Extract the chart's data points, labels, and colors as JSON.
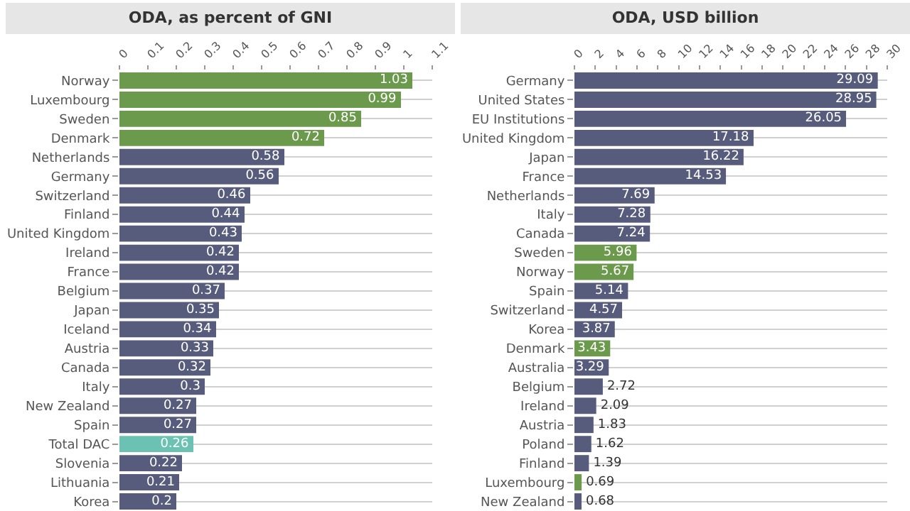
{
  "chart_data": [
    {
      "type": "bar",
      "orientation": "horizontal",
      "title": "ODA, as percent of GNI",
      "categories": [
        "Norway",
        "Luxembourg",
        "Sweden",
        "Denmark",
        "Netherlands",
        "Germany",
        "Switzerland",
        "Finland",
        "United Kingdom",
        "Ireland",
        "France",
        "Belgium",
        "Japan",
        "Iceland",
        "Austria",
        "Canada",
        "Italy",
        "New Zealand",
        "Spain",
        "Total DAC",
        "Slovenia",
        "Lithuania",
        "Korea"
      ],
      "values": [
        1.03,
        0.99,
        0.85,
        0.72,
        0.58,
        0.56,
        0.46,
        0.44,
        0.43,
        0.42,
        0.42,
        0.37,
        0.35,
        0.34,
        0.33,
        0.32,
        0.3,
        0.27,
        0.27,
        0.26,
        0.22,
        0.21,
        0.2
      ],
      "colors": [
        "#6b9a4c",
        "#6b9a4c",
        "#6b9a4c",
        "#6b9a4c",
        "#575c7c",
        "#575c7c",
        "#575c7c",
        "#575c7c",
        "#575c7c",
        "#575c7c",
        "#575c7c",
        "#575c7c",
        "#575c7c",
        "#575c7c",
        "#575c7c",
        "#575c7c",
        "#575c7c",
        "#575c7c",
        "#575c7c",
        "#6cc2b2",
        "#575c7c",
        "#575c7c",
        "#575c7c"
      ],
      "xlim": [
        0,
        1.1
      ],
      "xticks": [
        0,
        0.1,
        0.2,
        0.3,
        0.4,
        0.5,
        0.6,
        0.7,
        0.8,
        0.9,
        1,
        1.1
      ],
      "grid": "y",
      "data_labels": true
    },
    {
      "type": "bar",
      "orientation": "horizontal",
      "title": "ODA, USD billion",
      "categories": [
        "Germany",
        "United States",
        "EU Institutions",
        "United Kingdom",
        "Japan",
        "France",
        "Netherlands",
        "Italy",
        "Canada",
        "Sweden",
        "Norway",
        "Spain",
        "Switzerland",
        "Korea",
        "Denmark",
        "Australia",
        "Belgium",
        "Ireland",
        "Austria",
        "Poland",
        "Finland",
        "Luxembourg",
        "New Zealand"
      ],
      "values": [
        29.09,
        28.95,
        26.05,
        17.18,
        16.22,
        14.53,
        7.69,
        7.28,
        7.24,
        5.96,
        5.67,
        5.14,
        4.57,
        3.87,
        3.43,
        3.29,
        2.72,
        2.09,
        1.83,
        1.62,
        1.39,
        0.69,
        0.68
      ],
      "colors": [
        "#575c7c",
        "#575c7c",
        "#575c7c",
        "#575c7c",
        "#575c7c",
        "#575c7c",
        "#575c7c",
        "#575c7c",
        "#575c7c",
        "#6b9a4c",
        "#6b9a4c",
        "#575c7c",
        "#575c7c",
        "#575c7c",
        "#6b9a4c",
        "#575c7c",
        "#575c7c",
        "#575c7c",
        "#575c7c",
        "#575c7c",
        "#575c7c",
        "#6b9a4c",
        "#575c7c"
      ],
      "xlim": [
        0,
        30
      ],
      "xticks": [
        0,
        2,
        4,
        6,
        8,
        10,
        12,
        14,
        16,
        18,
        20,
        22,
        24,
        26,
        28,
        30
      ],
      "grid": "y",
      "data_labels": true
    }
  ]
}
